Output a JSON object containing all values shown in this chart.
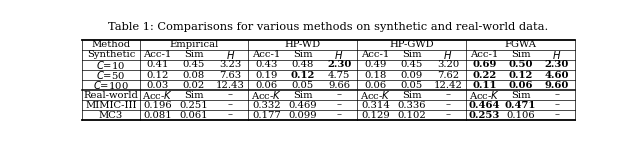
{
  "title": "Table 1: Comparisons for various methods on synthetic and real-world data.",
  "rows": [
    {
      "section": "Synthetic",
      "label": "C=10",
      "data": [
        [
          "0.41",
          "0.45",
          "3.23"
        ],
        [
          "0.43",
          "0.48",
          "2.30"
        ],
        [
          "0.49",
          "0.45",
          "3.20"
        ],
        [
          "0.69",
          "0.50",
          "2.30"
        ]
      ],
      "bold": [
        [
          false,
          false,
          false
        ],
        [
          false,
          false,
          true
        ],
        [
          false,
          false,
          false
        ],
        [
          true,
          true,
          true
        ]
      ]
    },
    {
      "section": "Synthetic",
      "label": "C=50",
      "data": [
        [
          "0.12",
          "0.08",
          "7.63"
        ],
        [
          "0.19",
          "0.12",
          "4.75"
        ],
        [
          "0.18",
          "0.09",
          "7.62"
        ],
        [
          "0.22",
          "0.12",
          "4.60"
        ]
      ],
      "bold": [
        [
          false,
          false,
          false
        ],
        [
          false,
          true,
          false
        ],
        [
          false,
          false,
          false
        ],
        [
          true,
          true,
          true
        ]
      ]
    },
    {
      "section": "Synthetic",
      "label": "C=100",
      "data": [
        [
          "0.03",
          "0.02",
          "12.43"
        ],
        [
          "0.06",
          "0.05",
          "9.66"
        ],
        [
          "0.06",
          "0.05",
          "12.42"
        ],
        [
          "0.11",
          "0.06",
          "9.60"
        ]
      ],
      "bold": [
        [
          false,
          false,
          false
        ],
        [
          false,
          false,
          false
        ],
        [
          false,
          false,
          false
        ],
        [
          true,
          true,
          true
        ]
      ]
    },
    {
      "section": "Real-world",
      "label": "MIMIC-III",
      "data": [
        [
          "0.196",
          "0.251",
          "–"
        ],
        [
          "0.332",
          "0.469",
          "–"
        ],
        [
          "0.314",
          "0.336",
          "–"
        ],
        [
          "0.464",
          "0.471",
          "–"
        ]
      ],
      "bold": [
        [
          false,
          false,
          false
        ],
        [
          false,
          false,
          false
        ],
        [
          false,
          false,
          false
        ],
        [
          true,
          true,
          false
        ]
      ]
    },
    {
      "section": "Real-world",
      "label": "MC3",
      "data": [
        [
          "0.081",
          "0.061",
          "–"
        ],
        [
          "0.177",
          "0.099",
          "–"
        ],
        [
          "0.129",
          "0.102",
          "–"
        ],
        [
          "0.253",
          "0.106",
          "–"
        ]
      ],
      "bold": [
        [
          false,
          false,
          false
        ],
        [
          false,
          false,
          false
        ],
        [
          false,
          false,
          false
        ],
        [
          true,
          false,
          false
        ]
      ]
    }
  ],
  "bg_color": "#ffffff",
  "text_color": "#000000",
  "font_size": 7.2,
  "title_font_size": 8.2
}
